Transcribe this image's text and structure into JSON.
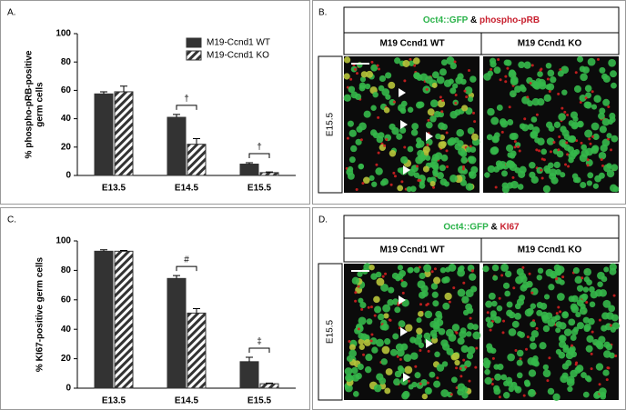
{
  "chart_data": [
    {
      "type": "bar",
      "panel": "A.",
      "ylabel": [
        "% phospho-pRB-positive",
        "germ cells"
      ],
      "categories": [
        "E13.5",
        "E14.5",
        "E15.5"
      ],
      "series": [
        {
          "name": "M19-Ccnd1 WT",
          "color": "#333333",
          "pattern": "solid",
          "values": [
            57.5,
            41,
            8
          ],
          "errors": [
            1.5,
            2,
            1
          ]
        },
        {
          "name": "M19-Ccnd1 KO",
          "color": "#333333",
          "pattern": "hatch",
          "values": [
            59,
            22,
            2
          ],
          "errors": [
            4,
            4,
            0.5
          ]
        }
      ],
      "ylim": [
        0,
        100
      ],
      "yticks": [
        0,
        20,
        40,
        60,
        80,
        100
      ],
      "legend": "top-right",
      "annotations": [
        {
          "category": "E14.5",
          "text": "†"
        },
        {
          "category": "E15.5",
          "text": "†"
        }
      ]
    },
    {
      "type": "bar",
      "panel": "C.",
      "ylabel": [
        "% KI67-positive germ cells"
      ],
      "categories": [
        "E13.5",
        "E14.5",
        "E15.5"
      ],
      "series": [
        {
          "name": "M19-Ccnd1 WT",
          "color": "#333333",
          "pattern": "solid",
          "values": [
            93,
            74.5,
            18
          ],
          "errors": [
            1,
            2,
            3
          ]
        },
        {
          "name": "M19-Ccnd1 KO",
          "color": "#333333",
          "pattern": "hatch",
          "values": [
            93,
            51,
            3
          ],
          "errors": [
            0.5,
            3,
            0.5
          ]
        }
      ],
      "ylim": [
        0,
        100
      ],
      "yticks": [
        0,
        20,
        40,
        60,
        80,
        100
      ],
      "annotations": [
        {
          "category": "E14.5",
          "text": "#"
        },
        {
          "category": "E15.5",
          "text": "‡"
        }
      ]
    }
  ],
  "panels": [
    {
      "label": "B.",
      "title": [
        {
          "text": "Oct4::GFP",
          "color": "#2bb34a"
        },
        {
          "text": "&",
          "color": "#000000"
        },
        {
          "text": "phospho-pRB",
          "color": "#c8202f"
        }
      ],
      "columns": [
        "M19 Ccnd1 WT",
        "M19 Ccnd1 KO"
      ],
      "row": "E15.5"
    },
    {
      "label": "D.",
      "title": [
        {
          "text": "Oct4::GFP",
          "color": "#2bb34a"
        },
        {
          "text": "&",
          "color": "#000000"
        },
        {
          "text": "KI67",
          "color": "#c8202f"
        }
      ],
      "columns": [
        "M19 Ccnd1 WT",
        "M19 Ccnd1 KO"
      ],
      "row": "E15.5"
    }
  ]
}
